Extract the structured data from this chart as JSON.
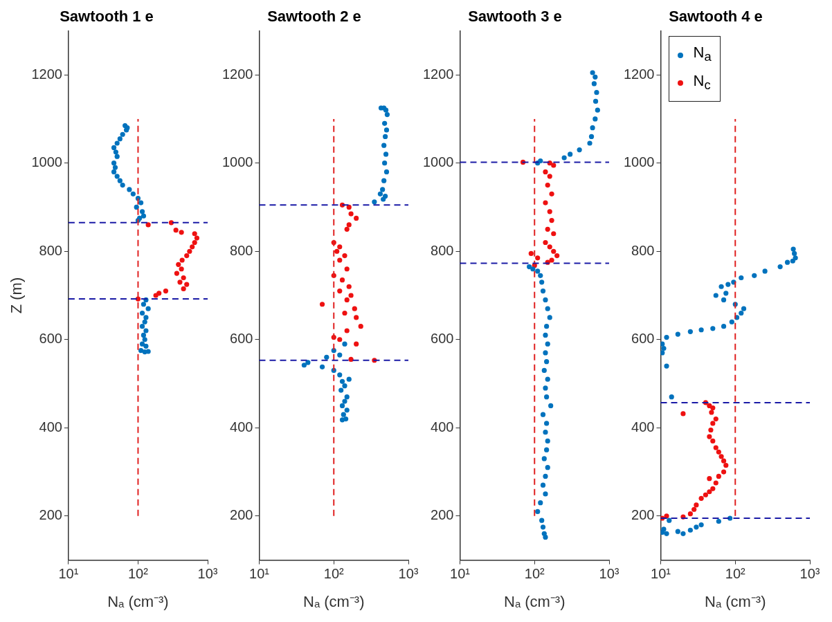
{
  "chart_data": [
    {
      "type": "scatter",
      "title": "Sawtooth 1 e",
      "xlabel": "Nₐ (cm⁻³)",
      "ylabel": "Z (m)",
      "log": "x",
      "grid": false,
      "marker": "circle",
      "xlim": [
        10,
        1000
      ],
      "xticks": [
        {
          "value": 10,
          "label": "10¹"
        },
        {
          "value": 100,
          "label": "10²"
        },
        {
          "value": 1000,
          "label": "10³"
        }
      ],
      "ylim": [
        100,
        1300
      ],
      "yticks": [
        200,
        400,
        600,
        800,
        1000,
        1200
      ],
      "ref_lines": [
        {
          "axis": "y",
          "value": 865,
          "color": "#1a1aa6",
          "line_style": "dashed"
        },
        {
          "axis": "y",
          "value": 692,
          "color": "#1a1aa6",
          "line_style": "dashed"
        }
      ],
      "series": [
        {
          "type": "line",
          "marker": "none",
          "line_style": "dashed",
          "color": "#e02020",
          "x": [
            100,
            100
          ],
          "values": [
            200,
            1100
          ]
        },
        {
          "color": "#0072bd",
          "x": [
            65,
            70,
            68,
            60,
            55,
            50,
            45,
            48,
            50,
            45,
            47,
            45,
            50,
            55,
            60,
            75,
            85,
            100,
            110,
            95,
            115,
            120,
            105,
            100,
            130,
            120,
            140,
            115,
            130,
            125,
            115,
            130,
            120,
            125,
            115,
            130,
            110,
            140,
            125
          ],
          "values": [
            1085,
            1080,
            1075,
            1065,
            1055,
            1045,
            1035,
            1025,
            1015,
            1000,
            990,
            980,
            970,
            960,
            950,
            940,
            930,
            920,
            910,
            900,
            890,
            880,
            875,
            870,
            690,
            680,
            670,
            660,
            650,
            640,
            630,
            620,
            610,
            600,
            590,
            585,
            575,
            573,
            572
          ]
        },
        {
          "color": "#ee1111",
          "x": [
            140,
            300,
            350,
            420,
            650,
            700,
            650,
            600,
            550,
            500,
            430,
            380,
            420,
            360,
            450,
            400,
            500,
            450,
            200,
            180,
            250,
            100
          ],
          "values": [
            860,
            865,
            848,
            843,
            840,
            830,
            820,
            810,
            800,
            790,
            780,
            770,
            760,
            750,
            740,
            730,
            725,
            715,
            705,
            700,
            710,
            692
          ]
        }
      ]
    },
    {
      "type": "scatter",
      "title": "Sawtooth 2 e",
      "xlabel": "Nₐ (cm⁻³)",
      "log": "x",
      "grid": false,
      "marker": "circle",
      "xlim": [
        10,
        1000
      ],
      "xticks": [
        {
          "value": 10,
          "label": "10¹"
        },
        {
          "value": 100,
          "label": "10²"
        },
        {
          "value": 1000,
          "label": "10³"
        }
      ],
      "ylim": [
        100,
        1300
      ],
      "yticks": [
        200,
        400,
        600,
        800,
        1000,
        1200
      ],
      "ref_lines": [
        {
          "axis": "y",
          "value": 905,
          "color": "#1a1aa6",
          "line_style": "dashed"
        },
        {
          "axis": "y",
          "value": 553,
          "color": "#1a1aa6",
          "line_style": "dashed"
        }
      ],
      "series": [
        {
          "type": "line",
          "marker": "none",
          "line_style": "dashed",
          "color": "#e02020",
          "x": [
            100,
            100
          ],
          "values": [
            200,
            1100
          ]
        },
        {
          "color": "#0072bd",
          "x": [
            430,
            470,
            500,
            520,
            480,
            510,
            490,
            470,
            500,
            480,
            510,
            470,
            450,
            420,
            490,
            350,
            460,
            140,
            100,
            120,
            80,
            45,
            40,
            70,
            100,
            120,
            130,
            140,
            125,
            150,
            140,
            130,
            150,
            135,
            145,
            130,
            160
          ],
          "values": [
            1125,
            1125,
            1120,
            1110,
            1090,
            1075,
            1060,
            1040,
            1020,
            1000,
            980,
            960,
            940,
            930,
            925,
            912,
            918,
            590,
            575,
            565,
            560,
            548,
            542,
            538,
            530,
            520,
            505,
            495,
            485,
            470,
            460,
            450,
            440,
            430,
            420,
            418,
            510
          ]
        },
        {
          "color": "#ee1111",
          "x": [
            130,
            160,
            170,
            200,
            160,
            150,
            100,
            120,
            110,
            140,
            120,
            150,
            100,
            130,
            160,
            120,
            170,
            150,
            70,
            190,
            140,
            200,
            230,
            150,
            100,
            200,
            170,
            350,
            120
          ],
          "values": [
            905,
            900,
            885,
            875,
            860,
            850,
            820,
            810,
            800,
            790,
            780,
            760,
            745,
            735,
            720,
            710,
            700,
            690,
            680,
            670,
            660,
            650,
            630,
            620,
            605,
            590,
            555,
            553,
            600
          ]
        }
      ]
    },
    {
      "type": "scatter",
      "title": "Sawtooth 3 e",
      "xlabel": "Nₐ (cm⁻³)",
      "log": "x",
      "grid": false,
      "marker": "circle",
      "xlim": [
        10,
        1000
      ],
      "xticks": [
        {
          "value": 10,
          "label": "10¹"
        },
        {
          "value": 100,
          "label": "10²"
        },
        {
          "value": 1000,
          "label": "10³"
        }
      ],
      "ylim": [
        100,
        1300
      ],
      "yticks": [
        200,
        400,
        600,
        800,
        1000,
        1200
      ],
      "ref_lines": [
        {
          "axis": "y",
          "value": 1002,
          "color": "#1a1aa6",
          "line_style": "dashed"
        },
        {
          "axis": "y",
          "value": 773,
          "color": "#1a1aa6",
          "line_style": "dashed"
        }
      ],
      "series": [
        {
          "type": "line",
          "marker": "none",
          "line_style": "dashed",
          "color": "#e02020",
          "x": [
            100,
            100
          ],
          "values": [
            200,
            1100
          ]
        },
        {
          "color": "#0072bd",
          "x": [
            600,
            650,
            630,
            680,
            660,
            700,
            650,
            600,
            580,
            550,
            400,
            300,
            250,
            120,
            110,
            85,
            95,
            110,
            120,
            125,
            130,
            140,
            150,
            160,
            145,
            140,
            150,
            140,
            145,
            135,
            150,
            140,
            145,
            165,
            130,
            145,
            140,
            150,
            145,
            135,
            150,
            140,
            130,
            140,
            120,
            110,
            125,
            130,
            135,
            140
          ],
          "values": [
            1205,
            1195,
            1180,
            1160,
            1140,
            1120,
            1100,
            1080,
            1060,
            1045,
            1030,
            1020,
            1012,
            1005,
            1000,
            765,
            760,
            755,
            745,
            730,
            710,
            690,
            670,
            650,
            630,
            610,
            590,
            570,
            550,
            530,
            510,
            490,
            470,
            450,
            430,
            410,
            390,
            370,
            350,
            330,
            310,
            290,
            270,
            250,
            230,
            210,
            190,
            175,
            160,
            152
          ]
        },
        {
          "color": "#ee1111",
          "x": [
            70,
            160,
            180,
            140,
            160,
            150,
            170,
            140,
            160,
            170,
            150,
            180,
            140,
            160,
            180,
            90,
            110,
            170,
            150,
            100,
            200
          ],
          "values": [
            1002,
            1000,
            995,
            980,
            970,
            950,
            930,
            910,
            890,
            870,
            850,
            840,
            820,
            810,
            800,
            795,
            785,
            780,
            775,
            768,
            790
          ]
        }
      ]
    },
    {
      "type": "scatter",
      "title": "Sawtooth 4 e",
      "xlabel": "Nₐ (cm⁻³)",
      "log": "x",
      "grid": false,
      "marker": "circle",
      "legend": "top left",
      "xlim": [
        10,
        1000
      ],
      "xticks": [
        {
          "value": 10,
          "label": "10¹"
        },
        {
          "value": 100,
          "label": "10²"
        },
        {
          "value": 1000,
          "label": "10³"
        }
      ],
      "ylim": [
        100,
        1300
      ],
      "yticks": [
        200,
        400,
        600,
        800,
        1000,
        1200
      ],
      "ref_lines": [
        {
          "axis": "y",
          "value": 457,
          "color": "#1a1aa6",
          "line_style": "dashed"
        },
        {
          "axis": "y",
          "value": 195,
          "color": "#1a1aa6",
          "line_style": "dashed"
        }
      ],
      "series": [
        {
          "type": "line",
          "marker": "none",
          "line_style": "dashed",
          "color": "#e02020",
          "x": [
            100,
            100
          ],
          "values": [
            200,
            1100
          ]
        },
        {
          "name": "N$_{a}$",
          "color": "#0072bd",
          "x": [
            600,
            620,
            640,
            590,
            500,
            400,
            250,
            180,
            120,
            95,
            80,
            65,
            75,
            55,
            70,
            100,
            130,
            120,
            105,
            90,
            70,
            50,
            35,
            25,
            17,
            12,
            10.5,
            11,
            10.5,
            12,
            14,
            13,
            11,
            12,
            10.5,
            17,
            20,
            25,
            30,
            35,
            60,
            85
          ],
          "values": [
            805,
            795,
            785,
            778,
            775,
            765,
            755,
            745,
            740,
            730,
            725,
            720,
            705,
            700,
            690,
            680,
            670,
            660,
            650,
            640,
            630,
            625,
            622,
            618,
            612,
            605,
            590,
            580,
            570,
            540,
            470,
            190,
            170,
            160,
            163,
            165,
            160,
            168,
            175,
            180,
            188,
            195
          ]
        },
        {
          "name": "N$_{c}$",
          "color": "#ee1111",
          "x": [
            40,
            45,
            50,
            48,
            20,
            55,
            50,
            47,
            45,
            50,
            55,
            60,
            65,
            70,
            75,
            70,
            60,
            45,
            55,
            50,
            45,
            40,
            35,
            30,
            28,
            25,
            20,
            10.5,
            12
          ],
          "values": [
            457,
            450,
            445,
            435,
            432,
            420,
            410,
            395,
            380,
            370,
            355,
            345,
            335,
            325,
            315,
            300,
            290,
            285,
            275,
            262,
            255,
            248,
            240,
            225,
            215,
            205,
            198,
            195,
            200
          ]
        }
      ]
    }
  ]
}
